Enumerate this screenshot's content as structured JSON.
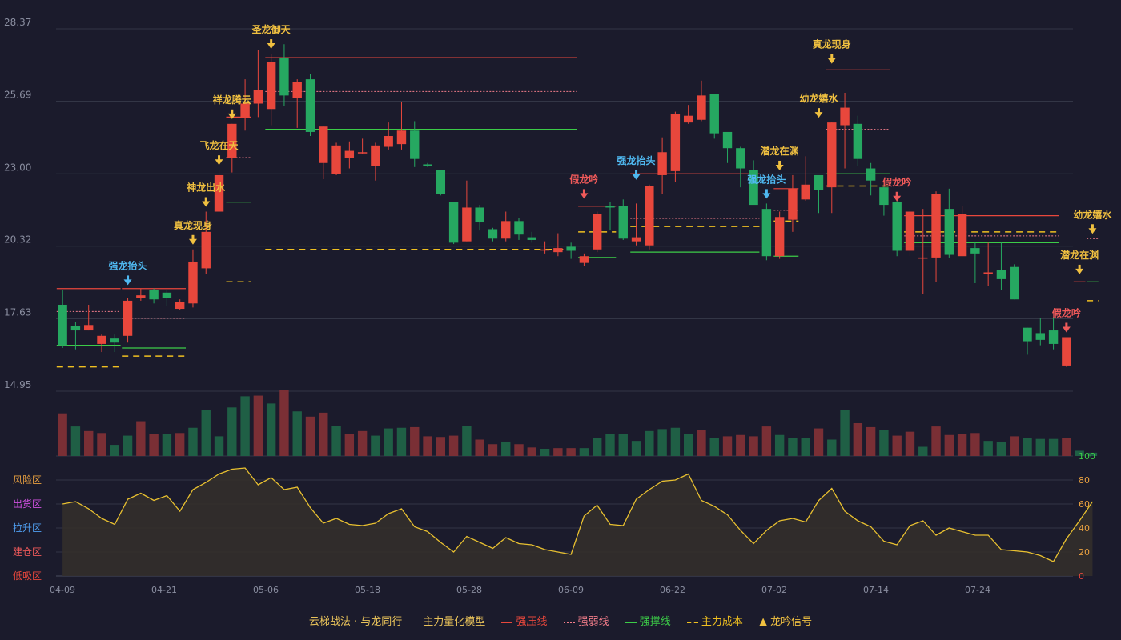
{
  "chart_data": {
    "type": "candlestick",
    "price_axis": {
      "ticks": [
        14.95,
        17.63,
        20.32,
        23.0,
        25.69,
        28.37
      ],
      "ylim": [
        14.95,
        28.37
      ]
    },
    "x_labels": [
      "04-09",
      "04-21",
      "05-06",
      "05-18",
      "05-28",
      "06-09",
      "06-22",
      "07-02",
      "07-14",
      "07-24"
    ],
    "candles": [
      [
        18.15,
        16.65,
        18.7,
        16.55
      ],
      [
        17.35,
        17.2,
        17.5,
        16.5
      ],
      [
        17.2,
        17.4,
        18.15,
        17.2
      ],
      [
        16.7,
        17.0,
        17.05,
        16.4
      ],
      [
        16.9,
        16.75,
        17.05,
        16.4
      ],
      [
        17.0,
        18.3,
        18.4,
        16.75
      ],
      [
        18.4,
        18.5,
        18.75,
        18.3
      ],
      [
        18.7,
        18.35,
        18.75,
        18.2
      ],
      [
        18.6,
        18.4,
        18.7,
        18.1
      ],
      [
        18.0,
        18.25,
        18.35,
        17.95
      ],
      [
        18.2,
        19.75,
        20.2,
        18.05
      ],
      [
        19.5,
        20.85,
        21.6,
        19.3
      ],
      [
        21.6,
        22.95,
        23.15,
        21.6
      ],
      [
        23.6,
        24.85,
        24.85,
        23.05
      ],
      [
        25.1,
        25.6,
        26.5,
        24.6
      ],
      [
        25.6,
        26.1,
        27.6,
        25.1
      ],
      [
        25.4,
        27.15,
        27.45,
        24.8
      ],
      [
        27.3,
        25.9,
        27.8,
        25.5
      ],
      [
        25.8,
        26.4,
        26.5,
        24.7
      ],
      [
        26.5,
        24.55,
        26.7,
        24.4
      ],
      [
        23.4,
        24.75,
        24.75,
        22.8
      ],
      [
        23.0,
        24.05,
        24.15,
        22.95
      ],
      [
        23.6,
        23.85,
        24.2,
        23.2
      ],
      [
        23.8,
        23.8,
        24.3,
        23.75
      ],
      [
        23.3,
        24.05,
        24.15,
        22.75
      ],
      [
        24.0,
        24.4,
        24.9,
        23.9
      ],
      [
        24.1,
        24.6,
        25.65,
        23.9
      ],
      [
        24.6,
        23.55,
        24.95,
        23.25
      ],
      [
        23.35,
        23.3,
        23.4,
        23.25
      ],
      [
        23.15,
        22.25,
        23.15,
        22.2
      ],
      [
        21.95,
        20.45,
        21.95,
        20.4
      ],
      [
        20.5,
        21.75,
        22.75,
        20.5
      ],
      [
        21.75,
        21.2,
        21.85,
        20.9
      ],
      [
        20.95,
        20.6,
        21.0,
        20.5
      ],
      [
        20.6,
        21.25,
        21.6,
        20.5
      ],
      [
        21.25,
        20.75,
        21.35,
        20.55
      ],
      [
        20.65,
        20.55,
        20.85,
        20.45
      ],
      [
        20.2,
        20.2,
        20.5,
        20.05
      ],
      [
        20.1,
        20.25,
        20.8,
        19.95
      ],
      [
        20.3,
        20.15,
        20.45,
        19.85
      ],
      [
        19.7,
        19.95,
        20.05,
        19.6
      ],
      [
        20.2,
        21.5,
        21.6,
        20.1
      ],
      [
        21.8,
        21.75,
        21.95,
        20.9
      ],
      [
        21.8,
        20.6,
        22.05,
        20.55
      ],
      [
        20.5,
        20.65,
        21.9,
        20.35
      ],
      [
        20.35,
        22.55,
        22.6,
        20.2
      ],
      [
        22.95,
        23.8,
        24.35,
        22.25
      ],
      [
        23.1,
        25.2,
        25.3,
        22.7
      ],
      [
        24.9,
        25.15,
        25.55,
        24.85
      ],
      [
        25.0,
        25.9,
        26.45,
        24.95
      ],
      [
        25.95,
        24.5,
        25.95,
        24.3
      ],
      [
        24.55,
        23.95,
        24.5,
        23.4
      ],
      [
        23.95,
        23.2,
        24.0,
        22.5
      ],
      [
        23.15,
        21.85,
        23.5,
        21.9
      ],
      [
        21.7,
        19.95,
        21.9,
        19.8
      ],
      [
        19.95,
        21.4,
        21.6,
        19.85
      ],
      [
        21.3,
        22.45,
        22.95,
        20.85
      ],
      [
        22.05,
        22.6,
        23.65,
        22.0
      ],
      [
        22.95,
        22.4,
        22.95,
        21.55
      ],
      [
        22.5,
        24.9,
        24.9,
        21.55
      ],
      [
        24.8,
        25.45,
        26.0,
        23.2
      ],
      [
        24.85,
        23.55,
        25.15,
        23.3
      ],
      [
        23.2,
        22.75,
        23.4,
        22.2
      ],
      [
        22.5,
        21.85,
        22.6,
        21.45
      ],
      [
        21.95,
        20.15,
        22.0,
        19.95
      ],
      [
        20.15,
        21.6,
        21.7,
        19.95
      ],
      [
        19.9,
        19.9,
        21.7,
        18.55
      ],
      [
        19.9,
        22.25,
        22.35,
        19.0
      ],
      [
        21.7,
        20.0,
        22.45,
        19.9
      ],
      [
        19.95,
        21.5,
        21.8,
        19.95
      ],
      [
        20.25,
        20.05,
        20.45,
        18.95
      ],
      [
        19.3,
        19.35,
        20.45,
        18.85
      ],
      [
        19.45,
        19.1,
        20.45,
        18.7
      ],
      [
        19.55,
        18.35,
        19.65,
        18.35
      ],
      [
        17.3,
        16.8,
        17.3,
        16.3
      ],
      [
        17.1,
        16.85,
        17.65,
        16.65
      ],
      [
        17.2,
        16.7,
        17.7,
        16.5
      ],
      [
        15.9,
        16.95,
        16.95,
        15.85
      ]
    ],
    "volume": [
      [
        65,
        0
      ],
      [
        45,
        1
      ],
      [
        38,
        0
      ],
      [
        35,
        0
      ],
      [
        17,
        1
      ],
      [
        31,
        1
      ],
      [
        53,
        0
      ],
      [
        34,
        0
      ],
      [
        33,
        1
      ],
      [
        35,
        0
      ],
      [
        43,
        1
      ],
      [
        70,
        1
      ],
      [
        30,
        1
      ],
      [
        74,
        1
      ],
      [
        91,
        1
      ],
      [
        92,
        0
      ],
      [
        80,
        1
      ],
      [
        100,
        0
      ],
      [
        68,
        1
      ],
      [
        60,
        0
      ],
      [
        66,
        0
      ],
      [
        46,
        1
      ],
      [
        33,
        0
      ],
      [
        38,
        0
      ],
      [
        31,
        1
      ],
      [
        42,
        1
      ],
      [
        43,
        1
      ],
      [
        44,
        0
      ],
      [
        30,
        0
      ],
      [
        29,
        0
      ],
      [
        31,
        0
      ],
      [
        46,
        1
      ],
      [
        25,
        0
      ],
      [
        18,
        0
      ],
      [
        22,
        1
      ],
      [
        18,
        0
      ],
      [
        13,
        0
      ],
      [
        11,
        1
      ],
      [
        12,
        0
      ],
      [
        12,
        0
      ],
      [
        12,
        1
      ],
      [
        28,
        1
      ],
      [
        33,
        1
      ],
      [
        33,
        1
      ],
      [
        23,
        1
      ],
      [
        38,
        1
      ],
      [
        41,
        1
      ],
      [
        43,
        1
      ],
      [
        33,
        1
      ],
      [
        40,
        0
      ],
      [
        28,
        1
      ],
      [
        30,
        0
      ],
      [
        32,
        0
      ],
      [
        30,
        0
      ],
      [
        45,
        0
      ],
      [
        32,
        1
      ],
      [
        28,
        1
      ],
      [
        28,
        1
      ],
      [
        42,
        0
      ],
      [
        25,
        1
      ],
      [
        70,
        1
      ],
      [
        50,
        0
      ],
      [
        44,
        0
      ],
      [
        40,
        1
      ],
      [
        31,
        0
      ],
      [
        37,
        0
      ],
      [
        14,
        1
      ],
      [
        45,
        0
      ],
      [
        32,
        0
      ],
      [
        34,
        0
      ],
      [
        35,
        0
      ],
      [
        23,
        1
      ],
      [
        22,
        1
      ],
      [
        30,
        0
      ],
      [
        28,
        1
      ],
      [
        26,
        1
      ],
      [
        26,
        1
      ],
      [
        28,
        0
      ],
      [
        8,
        1
      ],
      [
        5,
        1
      ]
    ],
    "oscillator": {
      "ylim": [
        0,
        100
      ],
      "ticks": [
        0,
        20,
        40,
        60,
        80,
        100
      ],
      "zones": [
        "低吸区",
        "建仓区",
        "拉升区",
        "出货区",
        "风险区"
      ],
      "values": [
        60,
        62,
        56,
        48,
        43,
        64,
        69,
        63,
        67,
        54,
        72,
        78,
        85,
        89,
        90,
        76,
        82,
        72,
        74,
        57,
        44,
        48,
        43,
        42,
        44,
        52,
        56,
        41,
        37,
        28,
        20,
        33,
        28,
        23,
        32,
        27,
        26,
        22,
        20,
        18,
        50,
        59,
        43,
        42,
        64,
        72,
        79,
        80,
        85,
        63,
        58,
        51,
        38,
        27,
        38,
        46,
        48,
        45,
        63,
        73,
        54,
        46,
        41,
        29,
        26,
        42,
        46,
        34,
        40,
        37,
        34,
        34,
        22,
        21,
        20,
        17,
        12,
        31,
        46,
        62
      ]
    },
    "signals": [
      {
        "i": 5,
        "label": "强龙抬头",
        "kind": "blue",
        "pos": "above",
        "price": 18.7
      },
      {
        "i": 10,
        "label": "真龙现身",
        "kind": "gold",
        "pos": "above",
        "price": 20.2
      },
      {
        "i": 11,
        "label": "神龙出水",
        "kind": "gold",
        "pos": "above",
        "price": 21.6
      },
      {
        "i": 12,
        "label": "飞龙在天",
        "kind": "gold",
        "pos": "above",
        "price": 23.15
      },
      {
        "i": 13,
        "label": "祥龙腾云",
        "kind": "gold",
        "pos": "above",
        "price": 24.85
      },
      {
        "i": 16,
        "label": "圣龙御天",
        "kind": "gold",
        "pos": "above",
        "price": 27.45
      },
      {
        "i": 40,
        "label": "假龙吟",
        "kind": "red",
        "pos": "above",
        "price": 21.9
      },
      {
        "i": 44,
        "label": "强龙抬头",
        "kind": "blue",
        "pos": "above",
        "price": 22.6
      },
      {
        "i": 54,
        "label": "强龙抬头",
        "kind": "blue",
        "pos": "above",
        "price": 21.9
      },
      {
        "i": 55,
        "label": "潜龙在渊",
        "kind": "gold",
        "pos": "above",
        "price": 22.95
      },
      {
        "i": 58,
        "label": "幼龙嬉水",
        "kind": "gold",
        "pos": "above",
        "price": 24.9
      },
      {
        "i": 59,
        "label": "真龙现身",
        "kind": "gold",
        "pos": "above",
        "price": 26.9
      },
      {
        "i": 64,
        "label": "假龙吟",
        "kind": "red",
        "pos": "above",
        "price": 21.8
      },
      {
        "i": 77,
        "label": "假龙吟",
        "kind": "red",
        "pos": "above",
        "price": 16.95
      },
      {
        "i": 78,
        "label": "潜龙在渊",
        "kind": "gold",
        "pos": "above",
        "price": 19.1
      },
      {
        "i": 79,
        "label": "幼龙嬉水",
        "kind": "gold",
        "pos": "above",
        "price": 20.6
      }
    ],
    "levels": [
      {
        "type": "pressure",
        "y": 18.75,
        "from": 0,
        "to": 4
      },
      {
        "type": "weak",
        "y": 17.9,
        "from": 0,
        "to": 4
      },
      {
        "type": "support",
        "y": 16.65,
        "from": 0,
        "to": 4
      },
      {
        "type": "cost",
        "y": 15.85,
        "from": 0,
        "to": 4
      },
      {
        "type": "pressure",
        "y": 18.75,
        "from": 5,
        "to": 9
      },
      {
        "type": "weak",
        "y": 17.65,
        "from": 5,
        "to": 9
      },
      {
        "type": "support",
        "y": 16.55,
        "from": 5,
        "to": 9
      },
      {
        "type": "cost",
        "y": 16.25,
        "from": 5,
        "to": 9
      },
      {
        "type": "support",
        "y": 21.95,
        "from": 13,
        "to": 14
      },
      {
        "type": "cost",
        "y": 19.0,
        "from": 13,
        "to": 14
      },
      {
        "type": "pressure",
        "y": 25.1,
        "from": 13,
        "to": 14
      },
      {
        "type": "weak",
        "y": 23.6,
        "from": 13,
        "to": 14
      },
      {
        "type": "pressure",
        "y": 27.3,
        "from": 16,
        "to": 39
      },
      {
        "type": "weak",
        "y": 26.05,
        "from": 16,
        "to": 39
      },
      {
        "type": "support",
        "y": 24.65,
        "from": 16,
        "to": 39
      },
      {
        "type": "cost",
        "y": 20.2,
        "from": 16,
        "to": 39
      },
      {
        "type": "pressure",
        "y": 21.8,
        "from": 40,
        "to": 42
      },
      {
        "type": "cost",
        "y": 20.85,
        "from": 40,
        "to": 42
      },
      {
        "type": "support",
        "y": 19.9,
        "from": 40,
        "to": 42
      },
      {
        "type": "pressure",
        "y": 23.0,
        "from": 44,
        "to": 53
      },
      {
        "type": "weak",
        "y": 21.35,
        "from": 44,
        "to": 53
      },
      {
        "type": "cost",
        "y": 21.05,
        "from": 44,
        "to": 53
      },
      {
        "type": "support",
        "y": 20.1,
        "from": 44,
        "to": 53
      },
      {
        "type": "pressure",
        "y": 22.45,
        "from": 55,
        "to": 56
      },
      {
        "type": "weak",
        "y": 21.65,
        "from": 55,
        "to": 56
      },
      {
        "type": "cost",
        "y": 21.25,
        "from": 55,
        "to": 56
      },
      {
        "type": "support",
        "y": 19.95,
        "from": 55,
        "to": 56
      },
      {
        "type": "pressure",
        "y": 26.85,
        "from": 59,
        "to": 63
      },
      {
        "type": "weak",
        "y": 24.65,
        "from": 59,
        "to": 63
      },
      {
        "type": "support",
        "y": 23.0,
        "from": 59,
        "to": 63
      },
      {
        "type": "cost",
        "y": 22.55,
        "from": 59,
        "to": 63
      },
      {
        "type": "pressure",
        "y": 21.45,
        "from": 65,
        "to": 76
      },
      {
        "type": "weak",
        "y": 20.7,
        "from": 65,
        "to": 76
      },
      {
        "type": "cost",
        "y": 20.85,
        "from": 65,
        "to": 76
      },
      {
        "type": "support",
        "y": 20.45,
        "from": 65,
        "to": 76
      },
      {
        "type": "pressure",
        "y": 19.0,
        "from": 78,
        "to": 78
      },
      {
        "type": "weak",
        "y": 20.6,
        "from": 79,
        "to": 79
      },
      {
        "type": "support",
        "y": 19.0,
        "from": 79,
        "to": 79
      },
      {
        "type": "cost",
        "y": 18.3,
        "from": 79,
        "to": 79
      }
    ]
  },
  "legend": {
    "title": "云梯战法 · 与龙同行——主力量化模型",
    "pressure": "强压线",
    "weak": "强弱线",
    "support": "强撑线",
    "cost": "主力成本",
    "signal": "龙吟信号",
    "signal_glyph": "▲"
  },
  "colors": {
    "background": "#1b1b2c",
    "up": "#e8473c",
    "down": "#26a861",
    "pressure": "#e8473c",
    "weak": "#f27d8a",
    "support": "#3ccc48",
    "cost": "#f0c020",
    "gold_label": "#f0c040",
    "blue_label": "#4fb8f0",
    "red_label": "#f05a5a",
    "grid": "#333646",
    "axis_text": "#8a8ea0",
    "osc_line": "#e8c030",
    "osc_fill": "#332f2b"
  }
}
